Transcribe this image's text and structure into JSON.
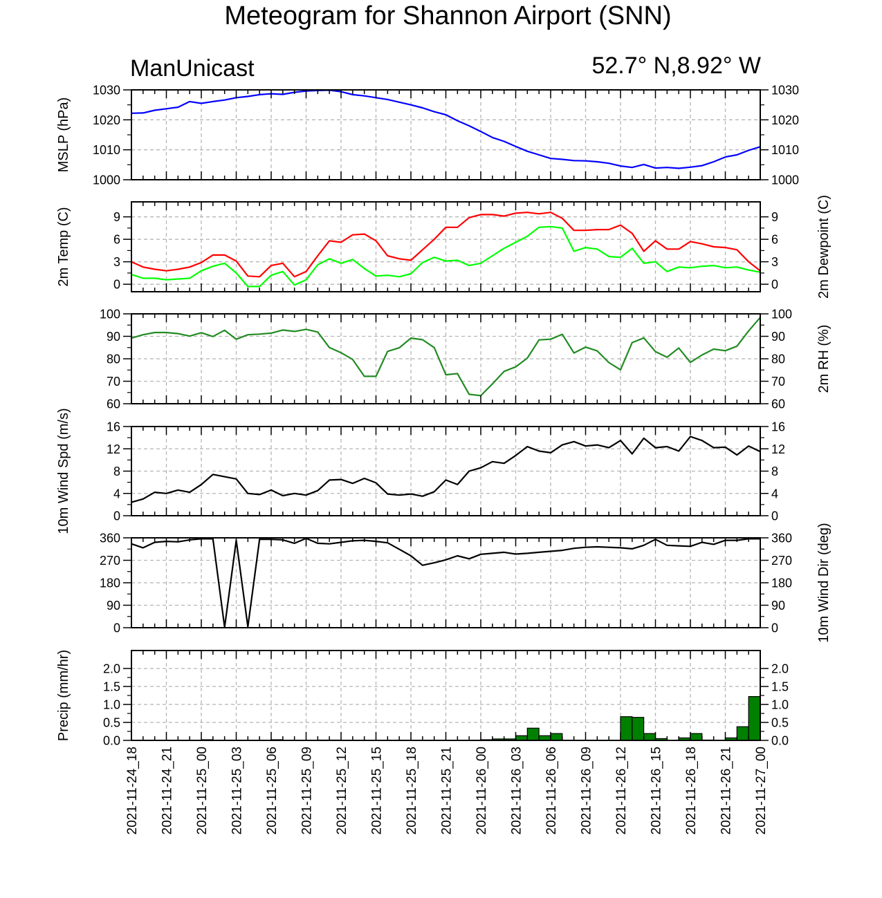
{
  "header": {
    "title": "Meteogram for Shannon Airport (SNN)",
    "model": "ManUnicast",
    "coords": "52.7° N,8.92° W"
  },
  "colors": {
    "mslp": "#0000ff",
    "temp": "#ff0000",
    "dewpoint": "#00ff00",
    "rh": "#228b22",
    "wind": "#000000",
    "precip": "#008000"
  },
  "chart_data": {
    "type": "line",
    "x_tick_labels": [
      "2021-11-24_18",
      "2021-11-24_21",
      "2021-11-25_00",
      "2021-11-25_03",
      "2021-11-25_06",
      "2021-11-25_09",
      "2021-11-25_12",
      "2021-11-25_15",
      "2021-11-25_18",
      "2021-11-25_21",
      "2021-11-26_00",
      "2021-11-26_03",
      "2021-11-26_06",
      "2021-11-26_09",
      "2021-11-26_12",
      "2021-11-26_15",
      "2021-11-26_18",
      "2021-11-26_21",
      "2021-11-27_00"
    ],
    "x_hours": [
      0,
      1,
      2,
      3,
      4,
      5,
      6,
      7,
      8,
      9,
      10,
      11,
      12,
      13,
      14,
      15,
      16,
      17,
      18,
      19,
      20,
      21,
      22,
      23,
      24,
      25,
      26,
      27,
      28,
      29,
      30,
      31,
      32,
      33,
      34,
      35,
      36,
      37,
      38,
      39,
      40,
      41,
      42,
      43,
      44,
      45,
      46,
      47,
      48,
      49,
      50,
      51,
      52,
      53,
      54
    ],
    "grid": true,
    "panels": [
      {
        "id": "mslp",
        "ylabel_left": "MSLP (hPa)",
        "ylabel_right": "",
        "ylim": [
          1000,
          1030
        ],
        "yticks": [
          1000,
          1010,
          1020,
          1030
        ],
        "series": [
          {
            "color_key": "mslp",
            "values": [
              1022.2,
              1022.3,
              1023.2,
              1023.7,
              1024.2,
              1026.1,
              1025.5,
              1026.1,
              1026.6,
              1027.4,
              1027.8,
              1028.4,
              1028.7,
              1028.5,
              1029.2,
              1029.6,
              1029.8,
              1029.9,
              1029.4,
              1028.4,
              1028.0,
              1027.4,
              1026.8,
              1025.9,
              1025.0,
              1024.0,
              1022.7,
              1021.7,
              1019.7,
              1018.0,
              1016.1,
              1014.1,
              1012.8,
              1011.1,
              1009.5,
              1008.3,
              1007.1,
              1006.8,
              1006.4,
              1006.3,
              1006.0,
              1005.5,
              1004.6,
              1004.1,
              1005.1,
              1003.9,
              1004.1,
              1003.8,
              1004.2,
              1004.7,
              1006.0,
              1007.6,
              1008.3,
              1009.8,
              1011.0
            ]
          }
        ]
      },
      {
        "id": "temp",
        "ylabel_left": "2m Temp (C)",
        "ylabel_right": "2m Dewpoint (C)",
        "ylim": [
          -1,
          11
        ],
        "yticks": [
          0,
          3,
          6,
          9
        ],
        "series": [
          {
            "color_key": "temp",
            "values": [
              3.0,
              2.3,
              2.0,
              1.8,
              2.0,
              2.3,
              2.9,
              3.9,
              3.9,
              3.1,
              1.1,
              1.0,
              2.5,
              2.8,
              1.0,
              1.7,
              3.8,
              5.8,
              5.6,
              6.6,
              6.7,
              5.8,
              3.8,
              3.4,
              3.2,
              4.6,
              6.0,
              7.6,
              7.6,
              8.9,
              9.3,
              9.3,
              9.1,
              9.5,
              9.6,
              9.4,
              9.6,
              8.8,
              7.2,
              7.2,
              7.3,
              7.3,
              7.9,
              6.8,
              4.4,
              5.8,
              4.7,
              4.7,
              5.7,
              5.4,
              5.0,
              4.9,
              4.6,
              3.0,
              1.8
            ]
          },
          {
            "color_key": "dewpoint",
            "values": [
              1.3,
              0.8,
              0.8,
              0.6,
              0.7,
              0.8,
              1.8,
              2.4,
              2.8,
              1.5,
              -0.3,
              -0.3,
              1.2,
              1.7,
              -0.1,
              0.6,
              2.6,
              3.4,
              2.8,
              3.3,
              2.1,
              1.1,
              1.2,
              1.0,
              1.4,
              2.9,
              3.6,
              3.1,
              3.2,
              2.5,
              2.8,
              3.8,
              4.8,
              5.6,
              6.4,
              7.6,
              7.7,
              7.5,
              4.4,
              4.9,
              4.7,
              3.7,
              3.6,
              4.8,
              2.8,
              3.0,
              1.7,
              2.3,
              2.2,
              2.4,
              2.5,
              2.2,
              2.3,
              1.9,
              1.6
            ]
          }
        ]
      },
      {
        "id": "rh",
        "ylabel_left": "",
        "ylabel_right": "2m RH (%)",
        "ylim": [
          60,
          100
        ],
        "yticks": [
          60,
          70,
          80,
          90,
          100
        ],
        "series": [
          {
            "color_key": "rh",
            "values": [
              89.2,
              90.7,
              91.7,
              91.7,
              91.2,
              90.1,
              91.6,
              89.9,
              92.7,
              88.7,
              90.7,
              91.0,
              91.4,
              92.8,
              92.2,
              93.1,
              91.9,
              85.0,
              82.7,
              79.7,
              72.2,
              72.2,
              83.3,
              84.9,
              89.2,
              88.5,
              85.0,
              72.9,
              73.4,
              64.2,
              63.6,
              68.8,
              74.4,
              76.4,
              80.3,
              88.4,
              88.7,
              90.9,
              82.6,
              85.2,
              83.5,
              78.3,
              75.1,
              87.2,
              89.3,
              83.2,
              80.7,
              84.8,
              78.4,
              81.7,
              84.3,
              83.6,
              85.6,
              92.4,
              98.4
            ]
          }
        ]
      },
      {
        "id": "wind_speed",
        "ylabel_left": "10m Wind Spd (m/s)",
        "ylabel_right": "",
        "ylim": [
          0,
          16
        ],
        "yticks": [
          0,
          4,
          8,
          12,
          16
        ],
        "series": [
          {
            "color_key": "wind",
            "values": [
              2.4,
              3.0,
              4.2,
              4.0,
              4.6,
              4.2,
              5.6,
              7.4,
              7.0,
              6.6,
              4.0,
              3.8,
              4.6,
              3.6,
              4.0,
              3.7,
              4.5,
              6.4,
              6.5,
              5.8,
              6.7,
              5.9,
              3.9,
              3.7,
              3.9,
              3.5,
              4.3,
              6.4,
              5.6,
              8.0,
              8.6,
              9.7,
              9.4,
              10.8,
              12.4,
              11.6,
              11.3,
              12.7,
              13.3,
              12.5,
              12.7,
              12.2,
              13.5,
              11.1,
              13.9,
              12.2,
              12.4,
              11.6,
              14.2,
              13.5,
              12.2,
              12.3,
              10.9,
              12.5,
              11.5
            ]
          }
        ]
      },
      {
        "id": "wind_dir",
        "ylabel_left": "",
        "ylabel_right": "10m Wind Dir (deg)",
        "ylim": [
          0,
          360
        ],
        "yticks": [
          0,
          90,
          180,
          270,
          360
        ],
        "series": [
          {
            "color_key": "wind",
            "values": [
              336,
              320,
              342,
              346,
              344,
              352,
              356,
              356,
              2,
              350,
              4,
              354,
              354,
              352,
              338,
              358,
              338,
              336,
              342,
              348,
              350,
              346,
              340,
              314,
              288,
              250,
              260,
              272,
              288,
              276,
              294,
              298,
              302,
              295,
              298,
              302,
              306,
              310,
              318,
              322,
              324,
              322,
              320,
              316,
              330,
              354,
              330,
              328,
              326,
              342,
              334,
              350,
              350,
              356,
              356
            ]
          }
        ]
      },
      {
        "id": "precip",
        "ylabel_left": "Precip (mm/hr)",
        "ylabel_right": "",
        "ylim": [
          0,
          2.5
        ],
        "yticks": [
          0.0,
          0.5,
          1.0,
          1.5,
          2.0
        ],
        "ytick_labels": [
          "0.0",
          "0.5",
          "1.0",
          "1.5",
          "2.0"
        ],
        "bars": [
          0,
          0,
          0,
          0,
          0,
          0,
          0,
          0.02,
          0,
          0,
          0,
          0,
          0,
          0.02,
          0,
          0,
          0,
          0.01,
          0.01,
          0,
          0,
          0,
          0,
          0,
          0,
          0,
          0,
          0,
          0,
          0,
          0,
          0.02,
          0.04,
          0.04,
          0.13,
          0.34,
          0.13,
          0.19,
          0,
          0,
          0,
          0,
          0,
          0.66,
          0.64,
          0.19,
          0.05,
          0,
          0.07,
          0.19,
          0.01,
          0,
          0.07,
          0.38,
          1.22
        ]
      }
    ]
  }
}
